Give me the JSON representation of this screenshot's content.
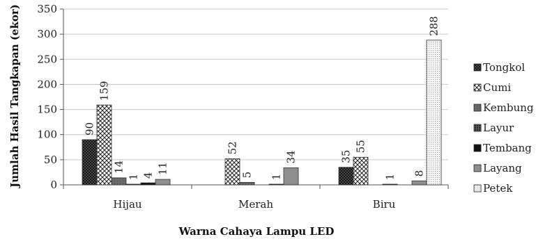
{
  "chart_data": {
    "type": "bar",
    "xlabel": "Warna Cahaya Lampu LED",
    "ylabel": "Jumlah Hasil Tangkapan (ekor)",
    "ylim": [
      0,
      350
    ],
    "yticks": [
      0,
      50,
      100,
      150,
      200,
      250,
      300,
      350
    ],
    "grid": "horizontal",
    "legend_position": "right",
    "categories": [
      "Hijau",
      "Merah",
      "Biru"
    ],
    "series": [
      {
        "name": "Tongkol",
        "values": [
          90,
          null,
          35
        ],
        "labels": [
          "90",
          "",
          "35"
        ],
        "pattern": "crosshatch-dark",
        "color": "#3a3a3a"
      },
      {
        "name": "Cumi",
        "values": [
          159,
          52,
          55
        ],
        "labels": [
          "159",
          "52",
          "55"
        ],
        "pattern": "crosshatch-light",
        "color": "#f0f0f0"
      },
      {
        "name": "Kembung",
        "values": [
          14,
          5,
          null
        ],
        "labels": [
          "14",
          "5",
          ""
        ],
        "pattern": "solid-gray",
        "color": "#5a5a5a"
      },
      {
        "name": "Layur",
        "values": [
          1,
          null,
          1
        ],
        "labels": [
          "1",
          "",
          "1"
        ],
        "pattern": "dark-dots",
        "color": "#444444"
      },
      {
        "name": "Tembang",
        "values": [
          4,
          1,
          null
        ],
        "labels": [
          "4",
          "1",
          ""
        ],
        "pattern": "solid-black",
        "color": "#111111"
      },
      {
        "name": "Layang",
        "values": [
          11,
          34,
          8
        ],
        "labels": [
          "11",
          "34",
          "8"
        ],
        "pattern": "solid-midgray",
        "color": "#8a8a8a"
      },
      {
        "name": "Petek",
        "values": [
          null,
          null,
          288
        ],
        "labels": [
          "",
          "",
          "288"
        ],
        "pattern": "light-dots",
        "color": "#e6e6e6"
      }
    ]
  }
}
